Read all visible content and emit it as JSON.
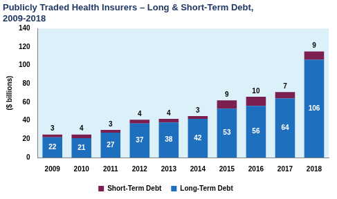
{
  "chart_data": {
    "type": "bar",
    "title": "Publicly Traded Health Insurers – Long & Short-Term Debt, 2009-2018",
    "y_label": "($ billions)",
    "categories": [
      "2009",
      "2010",
      "2011",
      "2012",
      "2013",
      "2014",
      "2015",
      "2016",
      "2017",
      "2018"
    ],
    "series": [
      {
        "name": "Long-Term Debt",
        "color": "#1f6fbf",
        "values": [
          22,
          21,
          27,
          37,
          38,
          42,
          53,
          56,
          64,
          106
        ]
      },
      {
        "name": "Short-Term Debt",
        "color": "#7b1f4e",
        "values": [
          3,
          4,
          3,
          4,
          4,
          3,
          9,
          10,
          7,
          9
        ]
      }
    ],
    "ylim": [
      0,
      140
    ],
    "yticks": [
      0,
      20,
      40,
      60,
      80,
      100,
      120,
      140
    ],
    "stacked": true,
    "grid": false,
    "data_labels": true,
    "legend": "bottom"
  }
}
